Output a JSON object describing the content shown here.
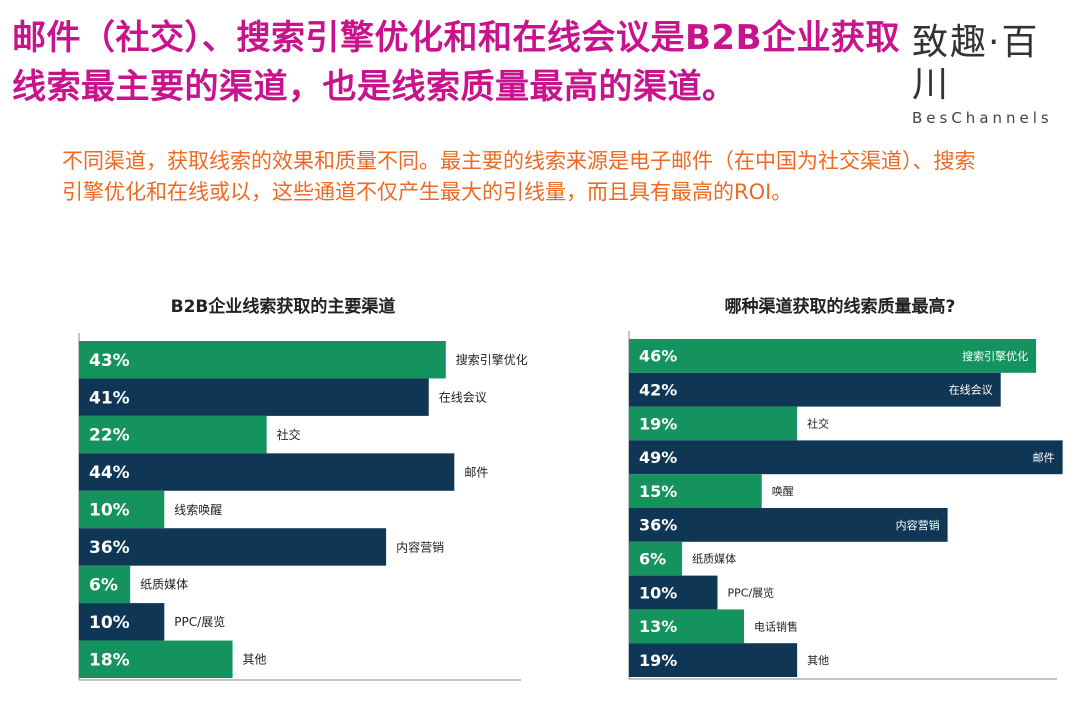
{
  "headline": "邮件（社交）、搜索引擎优化和和在线会议是B2B企业获取线索最主要的渠道，也是线索质量最高的渠道。",
  "brand": {
    "name_cn": "致趣·百川",
    "name_en": "BesChannels"
  },
  "subtitle": "不同渠道，获取线索的效果和质量不同。最主要的线索来源是电子邮件（在中国为社交渠道）、搜索引擎优化和在线或以，这些通道不仅产生最大的引线量，而且具有最高的ROI。",
  "colors": {
    "headline": "#c8138c",
    "subtitle": "#ee6a22",
    "green": "#14935e",
    "navy": "#0f3654"
  },
  "chart_data": [
    {
      "type": "bar",
      "orientation": "horizontal",
      "title": "B2B企业线索获取的主要渠道",
      "xlim": [
        0,
        50
      ],
      "value_suffix": "%",
      "categories": [
        "搜索引擎优化",
        "在线会议",
        "社交",
        "邮件",
        "线索唤醒",
        "内容营销",
        "纸质媒体",
        "PPC/展览",
        "其他"
      ],
      "values": [
        43,
        41,
        22,
        44,
        10,
        36,
        6,
        10,
        18
      ],
      "bar_colors": [
        "green",
        "navy",
        "green",
        "navy",
        "green",
        "navy",
        "green",
        "navy",
        "green"
      ],
      "category_label_position": "outside-right"
    },
    {
      "type": "bar",
      "orientation": "horizontal",
      "title": "哪种渠道获取的线索质量最高?",
      "xlim": [
        0,
        50
      ],
      "value_suffix": "%",
      "categories": [
        "搜索引擎优化",
        "在线会议",
        "社交",
        "邮件",
        "唤醒",
        "内容营销",
        "纸质媒体",
        "PPC/展览",
        "电话销售",
        "其他"
      ],
      "values": [
        46,
        42,
        19,
        49,
        15,
        36,
        6,
        10,
        13,
        19
      ],
      "bar_colors": [
        "green",
        "navy",
        "green",
        "navy",
        "green",
        "navy",
        "green",
        "navy",
        "green",
        "navy"
      ],
      "category_label_position": "inside-right-when-large"
    }
  ]
}
